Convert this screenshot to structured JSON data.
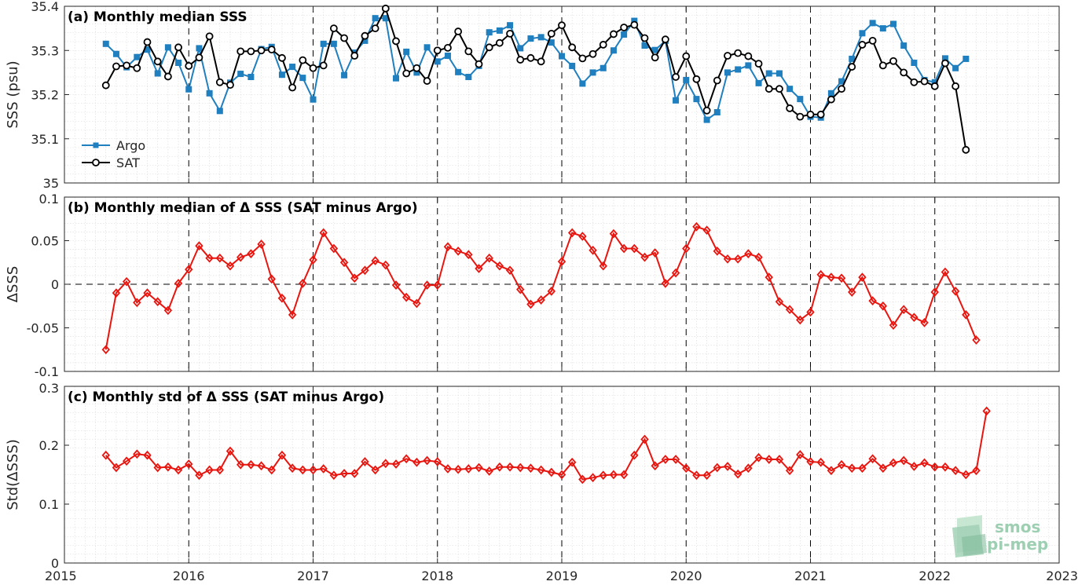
{
  "colors": {
    "argo": "#1f7fbf",
    "sat": "#000000",
    "delta": "#e8150f",
    "grid": "#d9d9d9",
    "axis": "#262626"
  },
  "watermark": {
    "line1": "smos",
    "line2": "pi-mep"
  },
  "chart_data": [
    {
      "type": "line",
      "title": "(a) Monthly median SSS",
      "ylabel": "SSS (psu)",
      "xlim": [
        2015,
        2023
      ],
      "ylim": [
        35,
        35.4
      ],
      "xticks": [
        "2015",
        "2016",
        "2017",
        "2018",
        "2019",
        "2020",
        "2021",
        "2022",
        "2023"
      ],
      "yticks": [
        "35",
        "35.1",
        "35.2",
        "35.3",
        "35.4"
      ],
      "legend_position": "left",
      "x_start": "2015-05",
      "series": [
        {
          "name": "Argo",
          "marker": "square",
          "values": [
            35.315,
            35.292,
            35.262,
            35.285,
            35.302,
            35.248,
            35.307,
            35.272,
            35.212,
            35.305,
            35.203,
            35.163,
            35.227,
            35.247,
            35.24,
            35.303,
            35.308,
            35.245,
            35.263,
            35.238,
            35.189,
            35.315,
            35.315,
            35.244,
            35.295,
            35.322,
            35.373,
            35.373,
            35.237,
            35.297,
            35.25,
            35.307,
            35.275,
            35.288,
            35.251,
            35.24,
            35.265,
            35.341,
            35.345,
            35.357,
            35.305,
            35.327,
            35.33,
            35.318,
            35.287,
            35.265,
            35.225,
            35.25,
            35.26,
            35.3,
            35.336,
            35.367,
            35.311,
            35.301,
            35.322,
            35.187,
            35.233,
            35.19,
            35.143,
            35.16,
            35.25,
            35.257,
            35.266,
            35.226,
            35.248,
            35.248,
            35.213,
            35.19,
            35.15,
            35.148,
            35.203,
            35.23,
            35.281,
            35.339,
            35.362,
            35.35,
            35.36,
            35.311,
            35.272,
            35.233,
            35.228,
            35.282,
            35.26,
            35.281
          ]
        },
        {
          "name": "SAT",
          "marker": "circle",
          "values": [
            35.221,
            35.264,
            35.266,
            35.26,
            35.319,
            35.275,
            35.241,
            35.307,
            35.265,
            35.284,
            35.332,
            35.228,
            35.222,
            35.298,
            35.298,
            35.3,
            35.302,
            35.283,
            35.216,
            35.278,
            35.26,
            35.266,
            35.35,
            35.328,
            35.288,
            35.333,
            35.35,
            35.395,
            35.321,
            35.248,
            35.26,
            35.231,
            35.3,
            35.306,
            35.343,
            35.298,
            35.269,
            35.307,
            35.317,
            35.338,
            35.279,
            35.283,
            35.275,
            35.338,
            35.357,
            35.307,
            35.282,
            35.292,
            35.313,
            35.337,
            35.352,
            35.358,
            35.328,
            35.284,
            35.325,
            35.24,
            35.287,
            35.235,
            35.164,
            35.232,
            35.288,
            35.294,
            35.287,
            35.27,
            35.213,
            35.213,
            35.169,
            35.15,
            35.155,
            35.155,
            35.189,
            35.213,
            35.263,
            35.313,
            35.322,
            35.266,
            35.276,
            35.25,
            35.228,
            35.23,
            35.219,
            35.271,
            35.219,
            35.075
          ]
        }
      ]
    },
    {
      "type": "line",
      "title": "(b) Monthly median of Δ SSS (SAT minus Argo)",
      "ylabel": "ΔSSS",
      "xlim": [
        2015,
        2023
      ],
      "ylim": [
        -0.1,
        0.1
      ],
      "xticks": [
        "2015",
        "2016",
        "2017",
        "2018",
        "2019",
        "2020",
        "2021",
        "2022",
        "2023"
      ],
      "yticks": [
        "-0.1",
        "-0.05",
        "0",
        "0.05",
        "0.1"
      ],
      "x_start": "2015-05",
      "series": [
        {
          "values": [
            -0.075,
            -0.01,
            0.003,
            -0.021,
            -0.01,
            -0.02,
            -0.03,
            0.001,
            0.017,
            0.044,
            0.03,
            0.03,
            0.021,
            0.031,
            0.035,
            0.046,
            0.006,
            -0.016,
            -0.035,
            0.001,
            0.028,
            0.059,
            0.041,
            0.025,
            0.007,
            0.016,
            0.027,
            0.022,
            -0.001,
            -0.015,
            -0.022,
            -0.001,
            -0.001,
            0.043,
            0.038,
            0.034,
            0.018,
            0.03,
            0.021,
            0.016,
            -0.006,
            -0.023,
            -0.018,
            -0.008,
            0.026,
            0.059,
            0.055,
            0.039,
            0.021,
            0.058,
            0.041,
            0.041,
            0.031,
            0.036,
            0.001,
            0.013,
            0.041,
            0.066,
            0.062,
            0.038,
            0.029,
            0.029,
            0.035,
            0.031,
            0.008,
            -0.02,
            -0.029,
            -0.041,
            -0.032,
            0.011,
            0.008,
            0.007,
            -0.009,
            0.008,
            -0.019,
            -0.025,
            -0.047,
            -0.029,
            -0.038,
            -0.044,
            -0.009,
            0.014,
            -0.008,
            -0.035,
            -0.064
          ]
        }
      ]
    },
    {
      "type": "line",
      "title": "(c) Monthly std of Δ SSS (SAT minus Argo)",
      "ylabel": "Std(ΔSSS)",
      "xlim": [
        2015,
        2023
      ],
      "ylim": [
        0,
        0.3
      ],
      "xticks": [
        "2015",
        "2016",
        "2017",
        "2018",
        "2019",
        "2020",
        "2021",
        "2022",
        "2023"
      ],
      "yticks": [
        "0",
        "0.1",
        "0.2",
        "0.3"
      ],
      "x_start": "2015-05",
      "series": [
        {
          "values": [
            0.183,
            0.162,
            0.173,
            0.185,
            0.183,
            0.162,
            0.163,
            0.158,
            0.168,
            0.149,
            0.158,
            0.158,
            0.19,
            0.167,
            0.167,
            0.165,
            0.158,
            0.183,
            0.161,
            0.158,
            0.158,
            0.16,
            0.149,
            0.152,
            0.152,
            0.172,
            0.158,
            0.169,
            0.168,
            0.177,
            0.171,
            0.174,
            0.172,
            0.16,
            0.159,
            0.16,
            0.162,
            0.156,
            0.163,
            0.163,
            0.162,
            0.161,
            0.158,
            0.154,
            0.15,
            0.171,
            0.142,
            0.145,
            0.149,
            0.15,
            0.15,
            0.183,
            0.21,
            0.165,
            0.176,
            0.176,
            0.161,
            0.149,
            0.149,
            0.162,
            0.164,
            0.151,
            0.161,
            0.179,
            0.176,
            0.176,
            0.157,
            0.184,
            0.172,
            0.171,
            0.157,
            0.167,
            0.161,
            0.161,
            0.177,
            0.161,
            0.17,
            0.174,
            0.164,
            0.17,
            0.163,
            0.163,
            0.157,
            0.15,
            0.157,
            0.258
          ]
        }
      ]
    }
  ]
}
